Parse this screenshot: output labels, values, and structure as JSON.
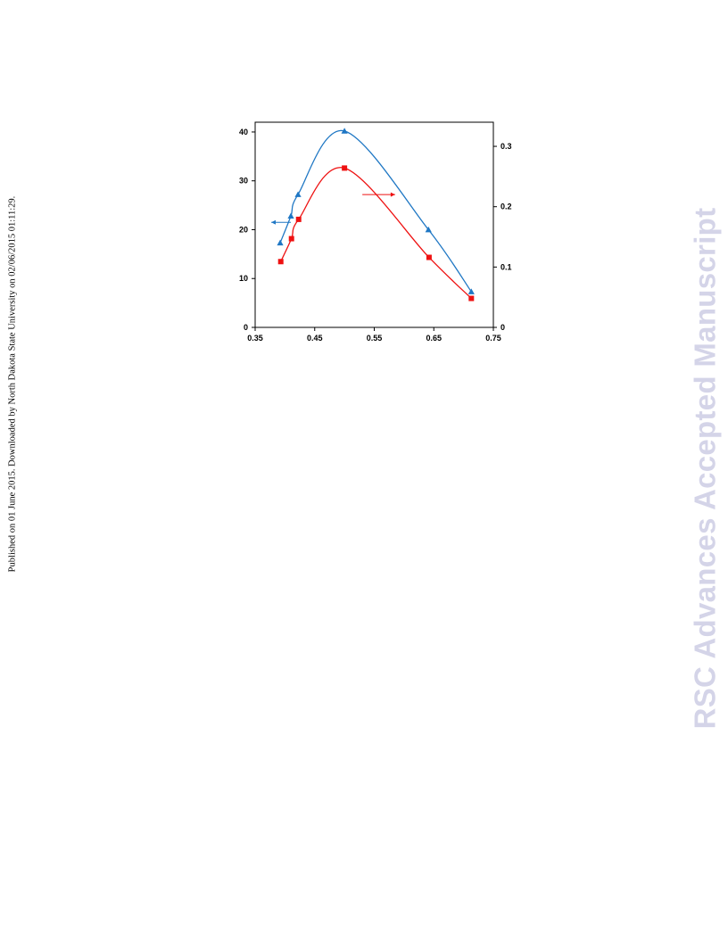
{
  "side_note": "Published on 01 June 2015. Downloaded by North Dakota State University on 02/06/2015 01:11:29.",
  "watermark": "RSC Advances Accepted Manuscript",
  "chart_data": {
    "type": "line",
    "title": "",
    "xlabel": "",
    "ylabel": "",
    "y2label": "",
    "xlim": [
      0.35,
      0.75
    ],
    "ylim": [
      0,
      42
    ],
    "y2lim": [
      0,
      0.34
    ],
    "x_ticks": [
      "0.35",
      "0.45",
      "0.55",
      "0.65",
      "0.75"
    ],
    "y_ticks": [
      "0",
      "10",
      "20",
      "30",
      "40"
    ],
    "y2_ticks": [
      "0",
      "0.1",
      "0.2",
      "0.3"
    ],
    "grid": false,
    "legend": "none",
    "series": [
      {
        "axis": "left",
        "marker": "triangle",
        "color": "#1f77c4",
        "x": [
          0.392,
          0.41,
          0.422,
          0.5,
          0.641,
          0.713
        ],
        "y": [
          17.3,
          22.8,
          27.2,
          40.2,
          20.0,
          7.3
        ]
      },
      {
        "axis": "right",
        "marker": "square",
        "color": "#ee1111",
        "x": [
          0.393,
          0.411,
          0.423,
          0.5,
          0.642,
          0.713
        ],
        "y": [
          0.109,
          0.147,
          0.179,
          0.264,
          0.116,
          0.048
        ]
      }
    ],
    "annotations": [
      {
        "type": "arrow",
        "direction": "left",
        "series": 0,
        "color": "#1f77c4"
      },
      {
        "type": "arrow",
        "direction": "right",
        "series": 1,
        "color": "#ee1111"
      }
    ]
  }
}
